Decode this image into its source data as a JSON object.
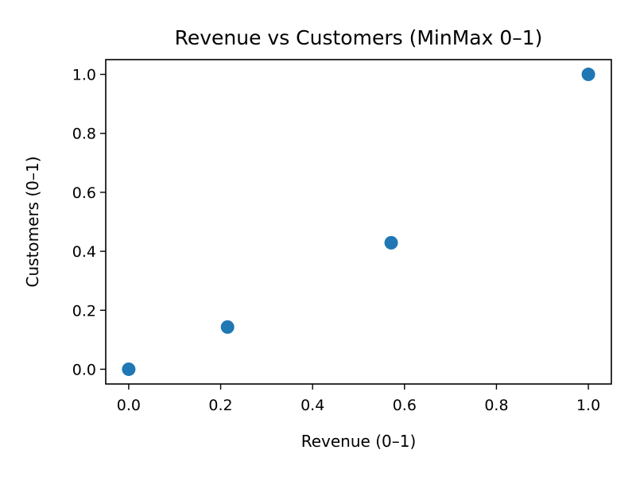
{
  "chart_data": {
    "type": "scatter",
    "title": "Revenue vs Customers (MinMax 0–1)",
    "xlabel": "Revenue (0–1)",
    "ylabel": "Customers (0–1)",
    "xlim": [
      -0.05,
      1.05
    ],
    "ylim": [
      -0.05,
      1.05
    ],
    "xticks": [
      "0.0",
      "0.2",
      "0.4",
      "0.6",
      "0.8",
      "1.0"
    ],
    "yticks": [
      "0.0",
      "0.2",
      "0.4",
      "0.6",
      "0.8",
      "1.0"
    ],
    "grid": false,
    "series": [
      {
        "color": "#1f77b4",
        "x": [
          0.0,
          0.215,
          0.571,
          1.0
        ],
        "y": [
          0.0,
          0.143,
          0.429,
          1.0
        ]
      }
    ]
  }
}
